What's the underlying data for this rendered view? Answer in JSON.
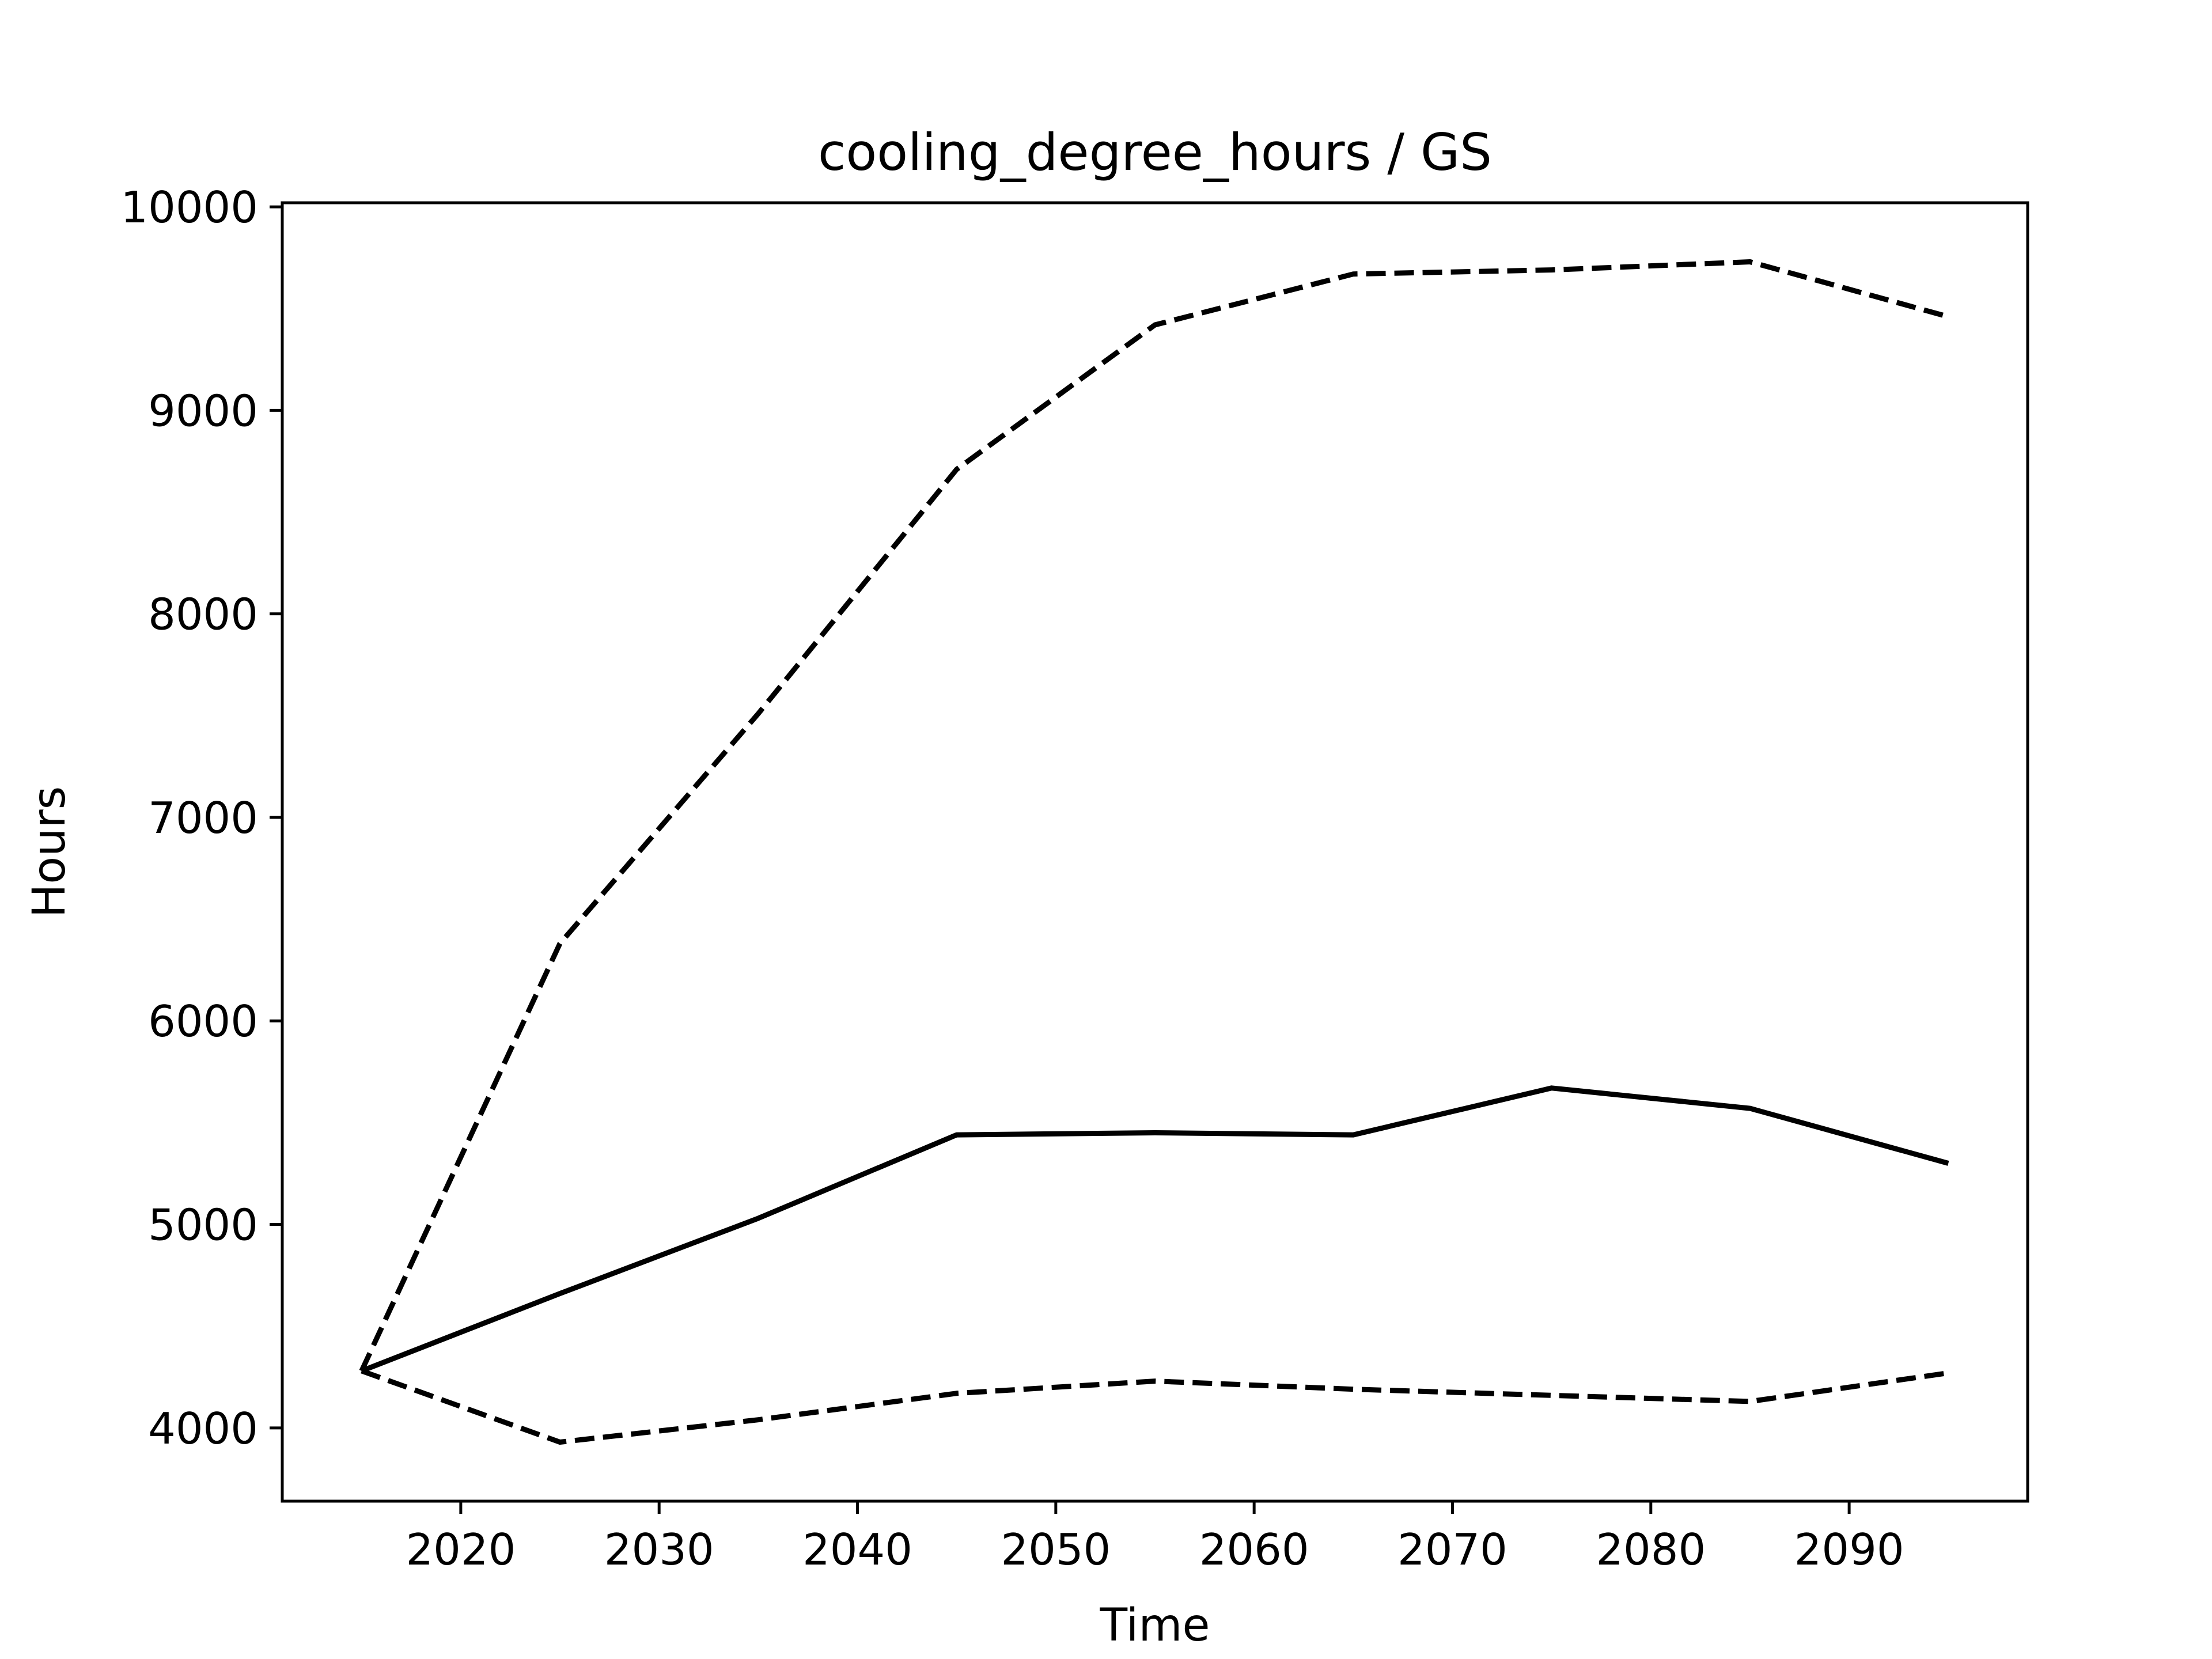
{
  "chart_data": {
    "type": "line",
    "title": "cooling_degree_hours / GS",
    "xlabel": "Time",
    "ylabel": "Hours",
    "xlim": [
      2011,
      2099
    ],
    "ylim": [
      3640,
      10020
    ],
    "xticks": [
      2020,
      2030,
      2040,
      2050,
      2060,
      2070,
      2080,
      2090
    ],
    "xtick_labels": [
      "2020",
      "2030",
      "2040",
      "2050",
      "2060",
      "2070",
      "2080",
      "2090"
    ],
    "yticks": [
      4000,
      5000,
      6000,
      7000,
      8000,
      9000,
      10000
    ],
    "ytick_labels": [
      "4000",
      "5000",
      "6000",
      "7000",
      "8000",
      "9000",
      "10000"
    ],
    "grid": false,
    "legend": "none",
    "x": [
      2015,
      2025,
      2035,
      2045,
      2055,
      2065,
      2075,
      2085,
      2095
    ],
    "series": [
      {
        "style": "dashed",
        "color": "#000000",
        "values": [
          4280,
          6380,
          7510,
          8710,
          9420,
          9670,
          9690,
          9730,
          9460
        ]
      },
      {
        "style": "solid",
        "color": "#000000",
        "values": [
          4280,
          4660,
          5030,
          5440,
          5450,
          5440,
          5670,
          5570,
          5300
        ]
      },
      {
        "style": "dashed",
        "color": "#000000",
        "values": [
          4280,
          3930,
          4040,
          4170,
          4230,
          4190,
          4160,
          4130,
          4270
        ]
      }
    ]
  }
}
